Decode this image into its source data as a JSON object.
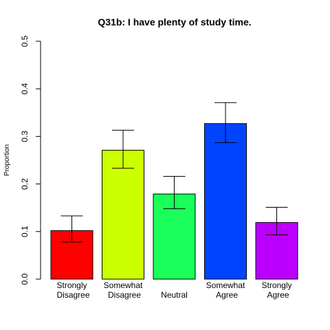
{
  "chart_data": {
    "type": "bar",
    "title": "Q31b: I have plenty of study time.",
    "xlabel": "",
    "ylabel": "Proportion",
    "ylim": [
      0,
      0.5
    ],
    "yticks": [
      "0.0",
      "0.1",
      "0.2",
      "0.3",
      "0.4",
      "0.5"
    ],
    "grid": false,
    "categories": [
      {
        "line1": "Strongly",
        "line2": "Disagree"
      },
      {
        "line1": "Somewhat",
        "line2": "Disagree"
      },
      {
        "line1": "Neutral",
        "line2": ""
      },
      {
        "line1": "Somewhat",
        "line2": "Agree"
      },
      {
        "line1": "Strongly",
        "line2": "Agree"
      }
    ],
    "values": [
      0.102,
      0.271,
      0.179,
      0.327,
      0.119
    ],
    "error_low": [
      0.078,
      0.233,
      0.148,
      0.287,
      0.093
    ],
    "error_high": [
      0.133,
      0.313,
      0.216,
      0.371,
      0.151
    ],
    "colors": [
      "#ff0000",
      "#ccff00",
      "#1aff5a",
      "#0044ff",
      "#bb00ff"
    ]
  }
}
